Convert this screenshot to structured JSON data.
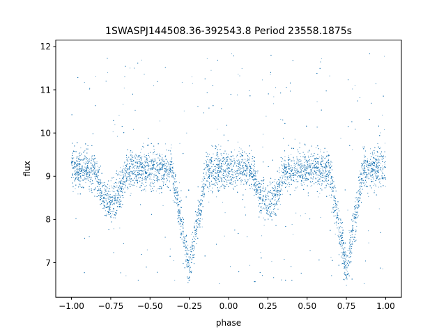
{
  "chart_data": {
    "type": "scatter",
    "title": "1SWASPJ144508.36-392543.8 Period 23558.1875s",
    "xlabel": "phase",
    "ylabel": "flux",
    "xlim": [
      -1.1,
      1.1
    ],
    "ylim": [
      6.2,
      12.15
    ],
    "xticks": [
      -1.0,
      -0.75,
      -0.5,
      -0.25,
      0.0,
      0.25,
      0.5,
      0.75,
      1.0
    ],
    "xtick_labels": [
      "−1.00",
      "−0.75",
      "−0.50",
      "−0.25",
      "0.00",
      "0.25",
      "0.50",
      "0.75",
      "1.00"
    ],
    "yticks": [
      7,
      8,
      9,
      10,
      11,
      12
    ],
    "ytick_labels": [
      "7",
      "8",
      "9",
      "10",
      "11",
      "12"
    ],
    "grid": false,
    "point_color": "#1f77b4",
    "series": [
      {
        "phase_range": [
          -1.0,
          1.0
        ],
        "baseline_flux": 9.15,
        "baseline_spread": 0.22,
        "primary_eclipse": {
          "phases": [
            -0.25,
            0.75
          ],
          "min_flux": 6.85,
          "half_width": 0.11
        },
        "secondary_eclipse": {
          "phases": [
            -0.75,
            0.25
          ],
          "min_flux": 8.4,
          "half_width": 0.1
        },
        "outlier_flux_range": [
          6.5,
          11.85
        ]
      }
    ]
  }
}
